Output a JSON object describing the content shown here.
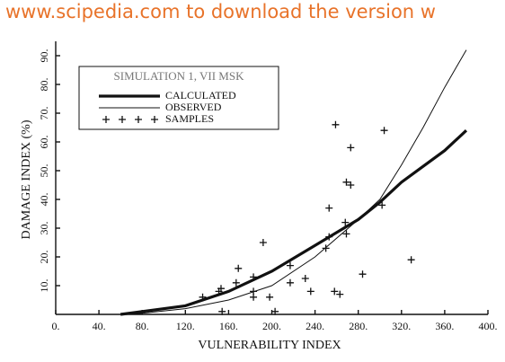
{
  "watermark": "www.scipedia.com to download the version w",
  "chart_data": {
    "type": "line",
    "xlabel": "VULNERABILITY INDEX",
    "ylabel": "DAMAGE INDEX (%)",
    "legend_title": "SIMULATION 1, VII MSK",
    "legend": "top-left",
    "xlim": [
      0,
      400
    ],
    "ylim": [
      0,
      95
    ],
    "xticks": [
      {
        "value": 0,
        "label": "0."
      },
      {
        "value": 40,
        "label": "40."
      },
      {
        "value": 80,
        "label": "80."
      },
      {
        "value": 120,
        "label": "120."
      },
      {
        "value": 160,
        "label": "160."
      },
      {
        "value": 200,
        "label": "200."
      },
      {
        "value": 240,
        "label": "240."
      },
      {
        "value": 280,
        "label": "280."
      },
      {
        "value": 320,
        "label": "320."
      },
      {
        "value": 360,
        "label": "360."
      },
      {
        "value": 400,
        "label": "400."
      }
    ],
    "yticks": [
      {
        "value": 10,
        "label": "10."
      },
      {
        "value": 20,
        "label": "20."
      },
      {
        "value": 30,
        "label": "30."
      },
      {
        "value": 40,
        "label": "40."
      },
      {
        "value": 50,
        "label": "50."
      },
      {
        "value": 60,
        "label": "60."
      },
      {
        "value": 70,
        "label": "70."
      },
      {
        "value": 80,
        "label": "80."
      },
      {
        "value": 90,
        "label": "90."
      }
    ],
    "series": [
      {
        "name": "CALCULATED",
        "color": "#111111",
        "style": "thick",
        "x": [
          60,
          80,
          120,
          160,
          200,
          240,
          280,
          300,
          320,
          360,
          380
        ],
        "values": [
          0,
          1,
          3,
          8,
          15,
          24,
          33,
          39,
          46,
          57,
          64
        ]
      },
      {
        "name": "OBSERVED",
        "color": "#111111",
        "style": "thin",
        "x": [
          70,
          120,
          160,
          200,
          240,
          280,
          300,
          320,
          340,
          360,
          380
        ],
        "values": [
          0,
          2,
          5,
          10,
          20,
          33,
          40,
          52,
          65,
          79,
          92
        ]
      },
      {
        "name": "SAMPLES",
        "color": "#111111",
        "style": "plus",
        "x": [
          136,
          151,
          153,
          154,
          167,
          169,
          183,
          183,
          183,
          192,
          198,
          203,
          217,
          217,
          231,
          236,
          250,
          253,
          253,
          258,
          263,
          259,
          268,
          269,
          269,
          273,
          273,
          284,
          304,
          302,
          329
        ],
        "values": [
          6,
          8,
          9,
          1,
          11,
          16,
          8,
          6,
          13,
          25,
          6,
          1,
          17,
          11,
          12.5,
          8,
          23,
          27,
          37,
          8,
          7,
          66,
          32,
          28,
          46,
          45,
          58,
          14,
          64,
          38,
          19
        ]
      }
    ]
  }
}
